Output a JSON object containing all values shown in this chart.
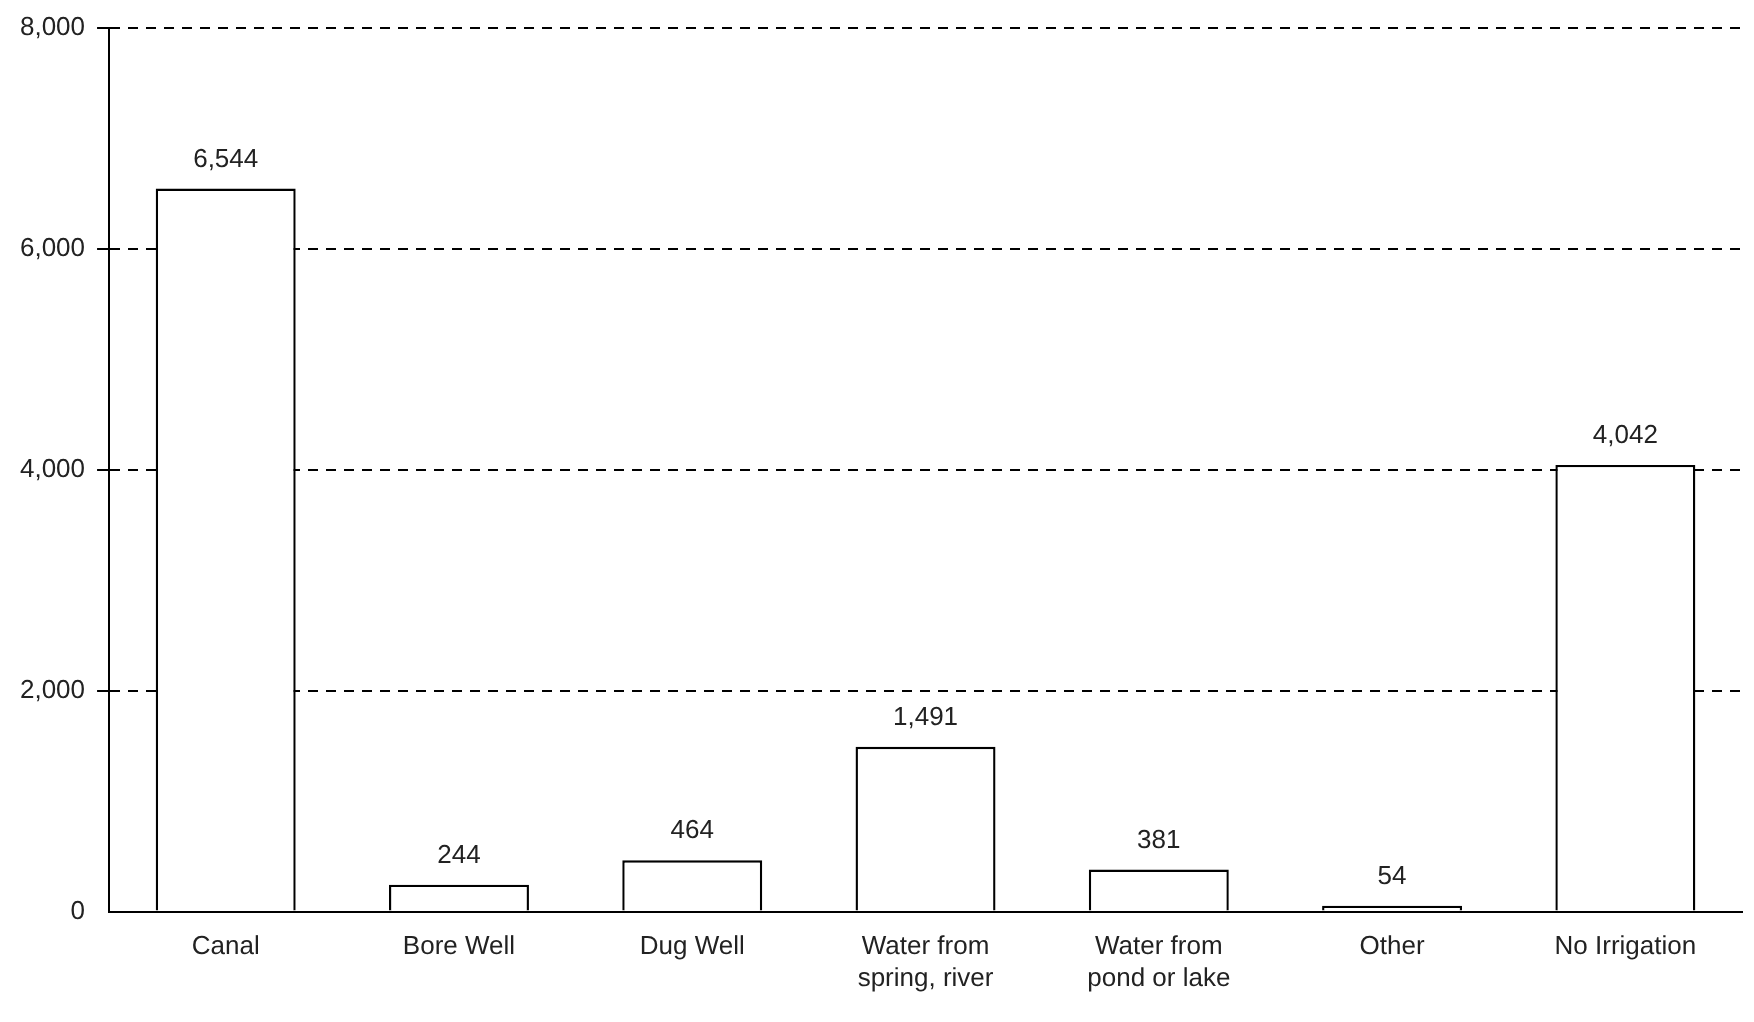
{
  "chart_data": {
    "type": "bar",
    "categories": [
      "Canal",
      "Bore Well",
      "Dug Well",
      "Water from spring, river",
      "Water from pond or lake",
      "Other",
      "No Irrigation"
    ],
    "values": [
      6544,
      244,
      464,
      1491,
      381,
      54,
      4042
    ],
    "color": "#ffffff",
    "ylim": [
      0,
      8000
    ],
    "yticks": [
      {
        "value": 0,
        "label": "0"
      },
      {
        "value": 2000,
        "label": "2,000"
      },
      {
        "value": 4000,
        "label": "4,000"
      },
      {
        "value": 6000,
        "label": "6,000"
      },
      {
        "value": 8000,
        "label": "8,000"
      }
    ],
    "value_labels": [
      "6,544",
      "244",
      "464",
      "1,491",
      "381",
      "54",
      "4,042"
    ],
    "grid": "y",
    "legend": false
  }
}
